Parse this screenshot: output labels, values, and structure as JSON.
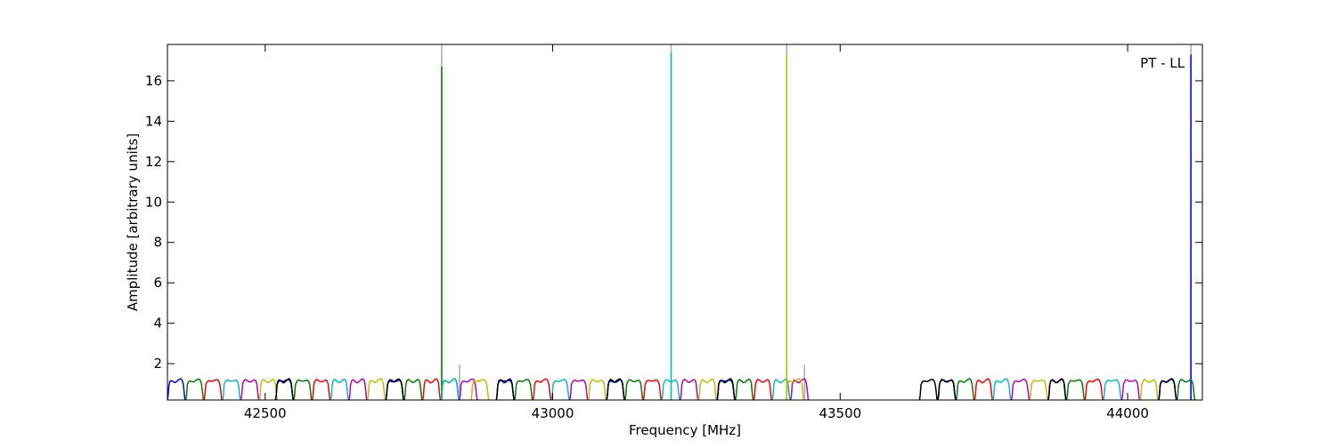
{
  "chart_data": {
    "type": "line",
    "title": "",
    "annotation": "PT - LL",
    "xlabel": "Frequency [MHz]",
    "ylabel": "Amplitude [arbitrary units]",
    "xlim": [
      42330,
      44130
    ],
    "ylim": [
      0.2,
      17.8
    ],
    "xticks": [
      42500,
      43000,
      43500,
      44000
    ],
    "yticks": [
      2,
      4,
      6,
      8,
      10,
      12,
      14,
      16
    ],
    "grid": false,
    "legend": "none",
    "channel_width_mhz": 32,
    "passband": {
      "shape_points": [
        [
          0.0,
          0.2
        ],
        [
          0.04,
          0.45
        ],
        [
          0.08,
          0.95
        ],
        [
          0.14,
          1.12
        ],
        [
          0.22,
          1.18
        ],
        [
          0.32,
          1.14
        ],
        [
          0.42,
          1.09
        ],
        [
          0.52,
          1.12
        ],
        [
          0.62,
          1.18
        ],
        [
          0.72,
          1.22
        ],
        [
          0.8,
          1.16
        ],
        [
          0.86,
          0.98
        ],
        [
          0.91,
          0.55
        ],
        [
          0.95,
          0.25
        ],
        [
          1.0,
          0.2
        ]
      ]
    },
    "series": [
      {
        "color": "#0000ff",
        "channel_starts": [
          42330,
          42518,
          42710,
          42902,
          43094,
          43286,
          43670,
          43862,
          44054
        ],
        "peak": {
          "x": 44110,
          "y": 17.3
        }
      },
      {
        "color": "#008000",
        "channel_starts": [
          42362,
          42550,
          42742,
          42806,
          42934,
          43126,
          43318,
          43702,
          43894,
          44086
        ],
        "peak": {
          "x": 42807,
          "y": 16.7
        }
      },
      {
        "color": "#ff0000",
        "channel_starts": [
          42394,
          42582,
          42774,
          42966,
          43158,
          43350,
          43734,
          43926
        ]
      },
      {
        "color": "#00bfbf",
        "channel_starts": [
          42426,
          42614,
          42806,
          42998,
          43190,
          43382,
          43766,
          43958
        ],
        "peak": {
          "x": 43206,
          "y": 17.4
        }
      },
      {
        "color": "#bf00bf",
        "channel_starts": [
          42458,
          42646,
          42838,
          43030,
          43222,
          43414,
          43798,
          43990
        ]
      },
      {
        "color": "#bfbf00",
        "channel_starts": [
          42490,
          42678,
          42858,
          43062,
          43254,
          43406,
          43830,
          44022
        ],
        "peak": {
          "x": 43407,
          "y": 17.3
        }
      },
      {
        "color": "#000000",
        "channel_starts": [
          42518,
          42710,
          42902,
          43094,
          43286,
          43638,
          43670,
          43862,
          44054
        ]
      }
    ],
    "reference_markers": {
      "color": "#b0b0b0",
      "lines": [
        {
          "x": 42807,
          "y_max": 17.8
        },
        {
          "x": 43206,
          "y_max": 17.8
        },
        {
          "x": 43407,
          "y_max": 17.8
        },
        {
          "x": 44110,
          "y_max": 17.8
        },
        {
          "x": 42838,
          "y_max": 1.95
        },
        {
          "x": 43438,
          "y_max": 1.95
        }
      ]
    }
  }
}
